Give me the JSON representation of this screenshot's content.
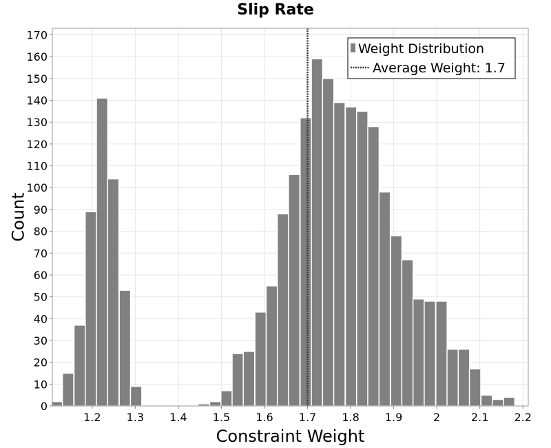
{
  "chart_data": {
    "type": "bar",
    "title": "Slip Rate",
    "xlabel": "Constraint Weight",
    "ylabel": "Count",
    "xlim": [
      1.1075,
      2.2125
    ],
    "ylim": [
      0,
      173
    ],
    "x_ticks": [
      1.2,
      1.3,
      1.4,
      1.5,
      1.6,
      1.7,
      1.8,
      1.9,
      2,
      2.1,
      2.2
    ],
    "x_tick_labels": [
      "1.2",
      "1.3",
      "1.4",
      "1.5",
      "1.6",
      "1.7",
      "1.8",
      "1.9",
      "2",
      "2.1",
      "2.2"
    ],
    "y_ticks": [
      0,
      10,
      20,
      30,
      40,
      50,
      60,
      70,
      80,
      90,
      100,
      110,
      120,
      130,
      140,
      150,
      160,
      170
    ],
    "bin_width": 0.02625,
    "x": [
      1.118,
      1.144,
      1.171,
      1.197,
      1.223,
      1.249,
      1.276,
      1.302,
      1.328,
      1.354,
      1.381,
      1.407,
      1.433,
      1.459,
      1.486,
      1.512,
      1.538,
      1.564,
      1.591,
      1.617,
      1.643,
      1.669,
      1.696,
      1.722,
      1.748,
      1.774,
      1.801,
      1.827,
      1.853,
      1.879,
      1.906,
      1.932,
      1.958,
      1.984,
      2.011,
      2.037,
      2.063,
      2.089,
      2.116,
      2.142,
      2.168,
      2.194
    ],
    "series": [
      {
        "name": "Weight Distribution",
        "color": "#808080",
        "values": [
          2,
          15,
          37,
          89,
          141,
          104,
          53,
          9,
          0,
          0,
          0,
          0,
          0,
          1,
          2,
          7,
          24,
          25,
          43,
          55,
          88,
          106,
          132,
          159,
          150,
          139,
          137,
          135,
          128,
          98,
          78,
          67,
          49,
          48,
          48,
          26,
          26,
          17,
          5,
          3,
          4,
          0
        ]
      }
    ],
    "reference_line": {
      "name": "Average Weight: 1.7",
      "x": 1.7,
      "style": "dotted",
      "color": "#333333"
    },
    "legend": {
      "position": "top-right",
      "entries": [
        "Weight Distribution",
        "Average Weight: 1.7"
      ]
    },
    "grid": true
  }
}
